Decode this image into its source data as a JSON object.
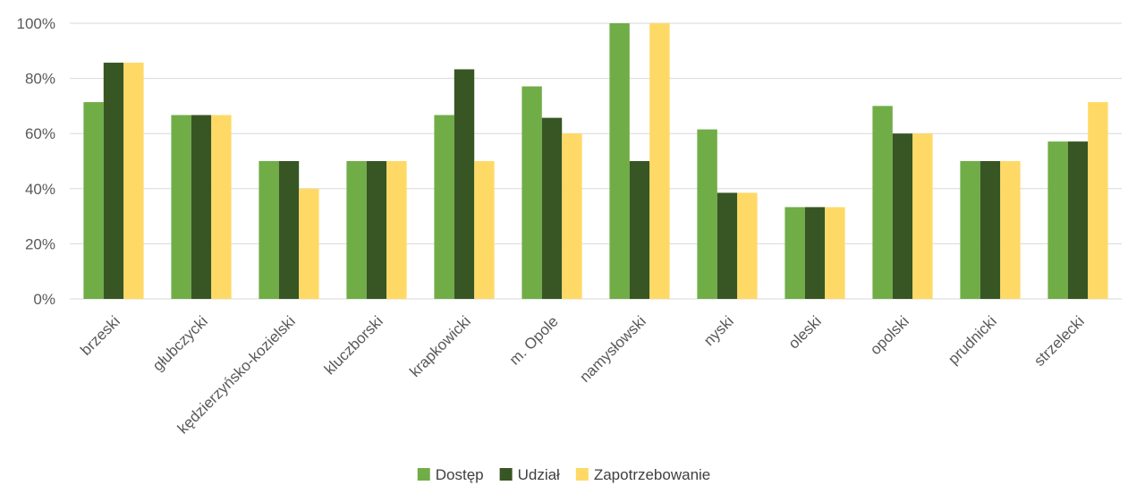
{
  "chart_data": {
    "type": "bar",
    "categories": [
      "brzeski",
      "głubczycki",
      "kędzierzyńsko-kozielski",
      "kluczborski",
      "krapkowicki",
      "m. Opole",
      "namysłowski",
      "nyski",
      "oleski",
      "opolski",
      "prudnicki",
      "strzelecki"
    ],
    "series": [
      {
        "name": "Dostęp",
        "color": "#70ad47",
        "values": [
          71.4,
          66.7,
          50,
          50,
          66.7,
          77.1,
          100,
          61.5,
          33.3,
          70,
          50,
          57.1
        ]
      },
      {
        "name": "Udział",
        "color": "#375623",
        "values": [
          85.7,
          66.7,
          50,
          50,
          83.3,
          65.7,
          50,
          38.5,
          33.3,
          60,
          50,
          57.1
        ]
      },
      {
        "name": "Zapotrzebowanie",
        "color": "#ffd966",
        "values": [
          85.7,
          66.7,
          40,
          50,
          50,
          60,
          100,
          38.5,
          33.3,
          60,
          50,
          71.4
        ]
      }
    ],
    "y_ticks": [
      "0%",
      "20%",
      "40%",
      "60%",
      "80%",
      "100%"
    ],
    "ylim": [
      0,
      100
    ],
    "grid": true,
    "legend_position": "bottom"
  }
}
